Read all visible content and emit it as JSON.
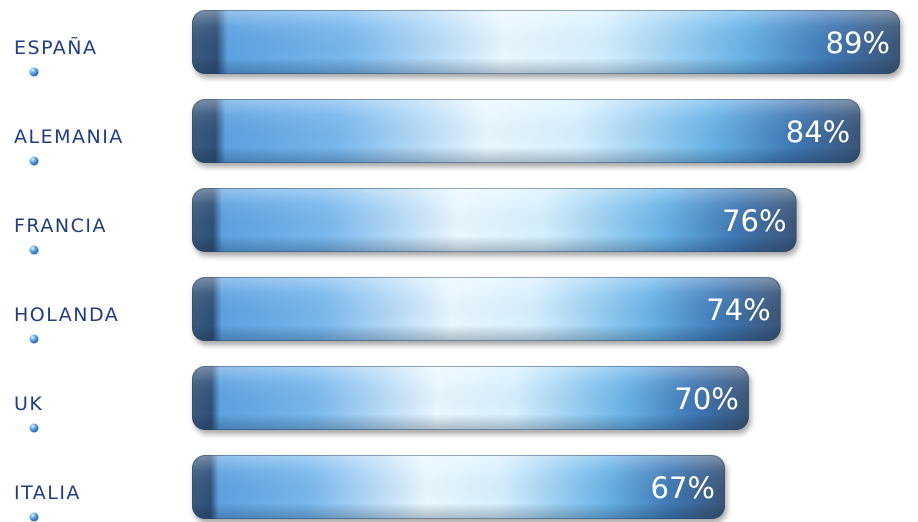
{
  "chart_data": {
    "type": "bar",
    "orientation": "horizontal",
    "categories": [
      "ESPAÑA",
      "ALEMANIA",
      "FRANCIA",
      "HOLANDA",
      "UK",
      "ITALIA"
    ],
    "values": [
      89,
      84,
      76,
      74,
      70,
      67
    ],
    "value_labels": [
      "89%",
      "84%",
      "76%",
      "74%",
      "70%",
      "67%"
    ],
    "unit": "%",
    "title": "",
    "xlabel": "",
    "ylabel": "",
    "grid": false,
    "legend": "none"
  },
  "colors": {
    "category_text": "#1f3e86",
    "value_text": "#ffffff",
    "bar_dark": "#3f6189",
    "bar_mid": "#4a9be6",
    "bar_light": "#e4f5ff",
    "bullet": "#4a90d9"
  },
  "icons": {
    "bullet": "blue-bullet-icon"
  }
}
